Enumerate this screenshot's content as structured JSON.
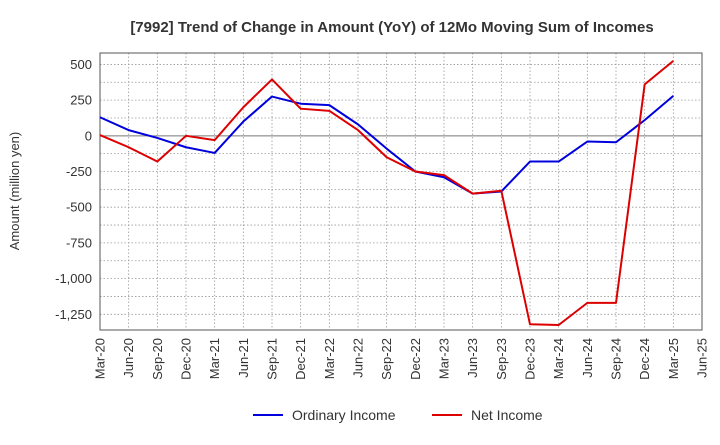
{
  "chart_data": {
    "type": "line",
    "title": "[7992]  Trend of Change in Amount (YoY) of 12Mo Moving Sum of Incomes",
    "xlabel": "",
    "ylabel": "Amount (million yen)",
    "ylim": [
      -1360,
      580
    ],
    "yticks": [
      500,
      250,
      0,
      -250,
      -500,
      -750,
      -1000,
      -1250
    ],
    "yticklabels": [
      "500",
      "250",
      "0",
      "-250",
      "-500",
      "-750",
      "-1,000",
      "-1,250"
    ],
    "categories": [
      "Mar-20",
      "Jun-20",
      "Sep-20",
      "Dec-20",
      "Mar-21",
      "Jun-21",
      "Sep-21",
      "Dec-21",
      "Mar-22",
      "Jun-22",
      "Sep-22",
      "Dec-22",
      "Mar-23",
      "Jun-23",
      "Sep-23",
      "Dec-23",
      "Mar-24",
      "Jun-24",
      "Sep-24",
      "Dec-24",
      "Mar-25",
      "Jun-25"
    ],
    "grid": true,
    "legend_position": "bottom",
    "series": [
      {
        "name": "Ordinary Income",
        "color": "#0000dd",
        "values": [
          130,
          40,
          -15,
          -80,
          -120,
          100,
          275,
          225,
          215,
          80,
          -90,
          -250,
          -290,
          -405,
          -390,
          -180,
          -180,
          -40,
          -45,
          110,
          280,
          null
        ]
      },
      {
        "name": "Net Income",
        "color": "#dd0000",
        "values": [
          5,
          -80,
          -180,
          0,
          -30,
          200,
          395,
          190,
          175,
          40,
          -150,
          -250,
          -275,
          -405,
          -385,
          -1320,
          -1325,
          -1170,
          -1170,
          360,
          525,
          null
        ]
      }
    ]
  }
}
